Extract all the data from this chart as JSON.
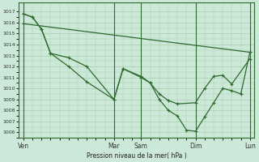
{
  "bg_color": "#cce8d8",
  "line_color": "#2d6a2d",
  "grid_color": "#aaccaa",
  "title": "Pression niveau de la mer( hPa )",
  "ylim": [
    1005.5,
    1017.8
  ],
  "yticks": [
    1006,
    1007,
    1008,
    1009,
    1010,
    1011,
    1012,
    1013,
    1014,
    1015,
    1016,
    1017
  ],
  "xtick_labels": [
    "Ven",
    "Mar",
    "Sam",
    "Dim",
    "Lun"
  ],
  "xtick_positions": [
    0,
    10,
    13,
    19,
    25
  ],
  "vline_positions": [
    0,
    10,
    13,
    19,
    25
  ],
  "series1_x": [
    0,
    25
  ],
  "series1_y": [
    1015.9,
    1013.3
  ],
  "series2_x": [
    0,
    1,
    2,
    3,
    5,
    7,
    10,
    11,
    13,
    14,
    15,
    16,
    17,
    19,
    20,
    21,
    22,
    23,
    25
  ],
  "series2_y": [
    1016.8,
    1016.5,
    1015.4,
    1013.2,
    1012.8,
    1012.0,
    1009.0,
    1011.8,
    1011.1,
    1010.5,
    1009.5,
    1008.9,
    1008.6,
    1008.7,
    1010.0,
    1011.1,
    1011.2,
    1010.4,
    1012.7
  ],
  "series3_x": [
    0,
    1,
    2,
    3,
    5,
    7,
    10,
    11,
    13,
    14,
    15,
    16,
    17,
    18,
    19,
    20,
    21,
    22,
    23,
    24,
    25
  ],
  "series3_y": [
    1016.8,
    1016.5,
    1015.4,
    1013.2,
    1012.0,
    1010.6,
    1009.0,
    1011.8,
    1011.0,
    1010.5,
    1009.0,
    1008.0,
    1007.5,
    1006.2,
    1006.1,
    1007.4,
    1008.7,
    1010.0,
    1009.8,
    1009.5,
    1013.3
  ]
}
